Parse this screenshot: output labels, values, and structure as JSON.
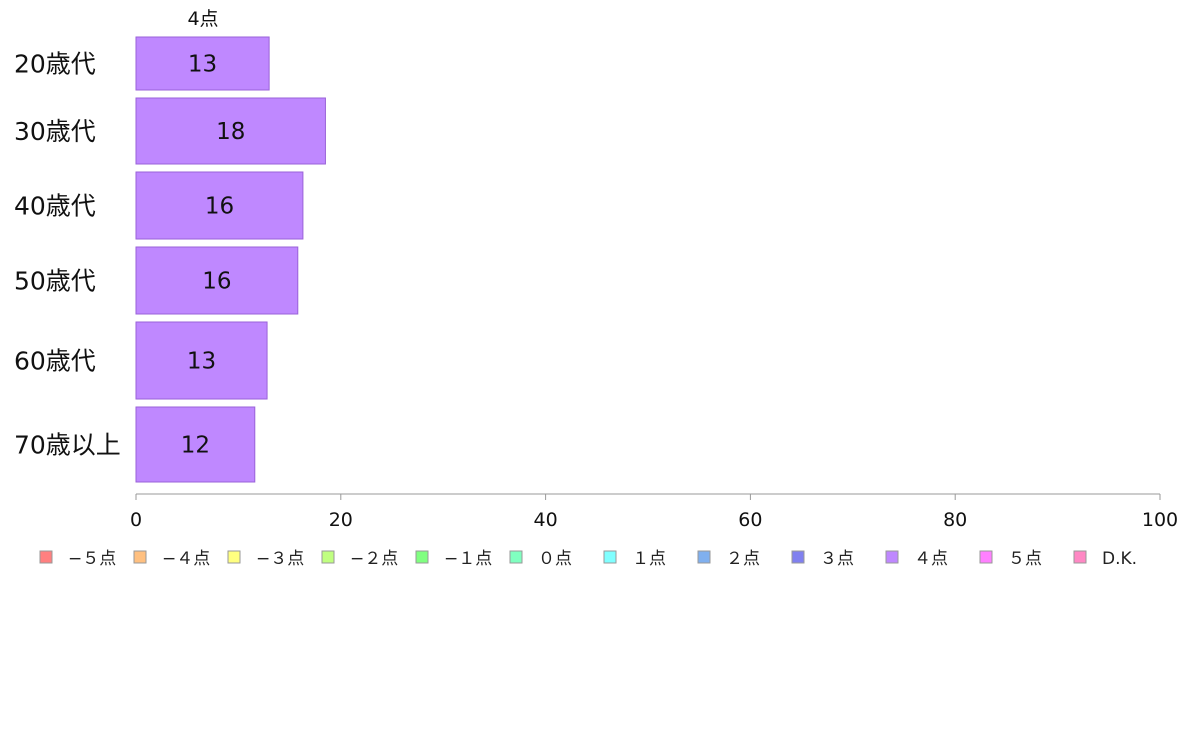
{
  "chart_data": {
    "type": "bar",
    "orientation": "horizontal",
    "series_title": "4点",
    "categories": [
      "20歳代",
      "30歳代",
      "40歳代",
      "50歳代",
      "60歳代",
      "70歳以上"
    ],
    "values": [
      13,
      18,
      16,
      16,
      13,
      12
    ],
    "bar_lengths": [
      13,
      18.5,
      16.3,
      15.8,
      12.8,
      11.6
    ],
    "xlim": [
      0,
      100
    ],
    "xticks": [
      0,
      20,
      40,
      60,
      80,
      100
    ],
    "grid": false,
    "legend_placement": "bottom",
    "legend": [
      {
        "label": "−５点",
        "color": "#ff8080"
      },
      {
        "label": "−４点",
        "color": "#ffc080"
      },
      {
        "label": "−３点",
        "color": "#ffff80"
      },
      {
        "label": "−２点",
        "color": "#c0ff80"
      },
      {
        "label": "−１点",
        "color": "#80ff80"
      },
      {
        "label": "０点",
        "color": "#80ffc0"
      },
      {
        "label": "１点",
        "color": "#80ffff"
      },
      {
        "label": "２点",
        "color": "#80b0ef"
      },
      {
        "label": "３点",
        "color": "#8080ef"
      },
      {
        "label": "４点",
        "color": "#bf88ff"
      },
      {
        "label": "５点",
        "color": "#ff80ff"
      },
      {
        "label": "D.K.",
        "color": "#ff88c4"
      }
    ],
    "bar_color": "#bf88ff",
    "bar_stroke": "#9a62d8",
    "axis_color": "#999999"
  }
}
